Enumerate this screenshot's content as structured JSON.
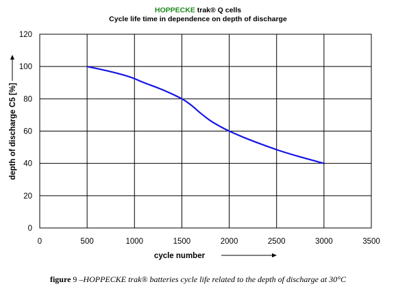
{
  "title": {
    "brand": "HOPPECKE",
    "product": " trak® Q cells",
    "subtitle": "Cycle life time in dependence on depth of discharge"
  },
  "caption": {
    "figure": "figure",
    "number": " 9 –",
    "text": "HOPPECKE trak® batteries cycle life related to the depth of discharge at 30°C"
  },
  "colors": {
    "series": "#1414e6",
    "grid": "#000000"
  },
  "chart_data": {
    "type": "line",
    "xlabel": "cycle number",
    "ylabel": "depth of discharge C5 [%]",
    "xlim": [
      0,
      3500
    ],
    "ylim": [
      0,
      120
    ],
    "xticks": [
      0,
      500,
      1000,
      1500,
      2000,
      2500,
      3000,
      3500
    ],
    "yticks": [
      0,
      20,
      40,
      60,
      80,
      100,
      120
    ],
    "grid": true,
    "legend": "none",
    "series": [
      {
        "x": [
          500,
          700,
          900,
          1000,
          1100,
          1300,
          1500,
          1600,
          1700,
          1800,
          1900,
          2000,
          2200,
          2500,
          2750,
          3000
        ],
        "y": [
          100,
          97.5,
          94.5,
          92.5,
          90,
          85.5,
          80,
          76,
          71,
          66.5,
          63,
          60,
          55,
          48.5,
          44,
          40
        ]
      }
    ]
  }
}
